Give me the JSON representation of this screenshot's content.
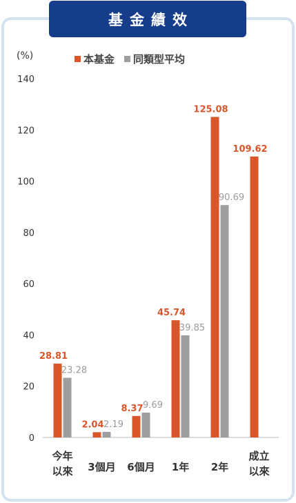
{
  "badge_title": "基金績效",
  "colors": {
    "fund": "#d9562b",
    "peer": "#9e9e9e",
    "badge": "#163d8c",
    "frame": "#d6e2f2"
  },
  "chart_data": {
    "type": "bar",
    "unit_label": "(%)",
    "legend": [
      "本基金",
      "同類型平均"
    ],
    "legend_placement": "top",
    "categories": [
      [
        "今年",
        "以來"
      ],
      [
        "3個月"
      ],
      [
        "6個月"
      ],
      [
        "1年"
      ],
      [
        "2年"
      ],
      [
        "成立",
        "以來"
      ]
    ],
    "series": [
      {
        "name": "本基金",
        "values": [
          28.81,
          2.04,
          8.37,
          45.74,
          125.08,
          109.62
        ],
        "labels": [
          "28.81",
          "2.04",
          "8.37",
          "45.74",
          "125.08",
          "109.62"
        ]
      },
      {
        "name": "同類型平均",
        "values": [
          23.28,
          2.19,
          9.69,
          39.85,
          90.69,
          null
        ],
        "labels": [
          "23.28",
          "2.19",
          "9.69",
          "39.85",
          "90.69",
          ""
        ]
      }
    ],
    "yticks": [
      0,
      20,
      40,
      60,
      80,
      100,
      120,
      140
    ],
    "ylim": [
      0,
      140
    ],
    "grid": false
  }
}
